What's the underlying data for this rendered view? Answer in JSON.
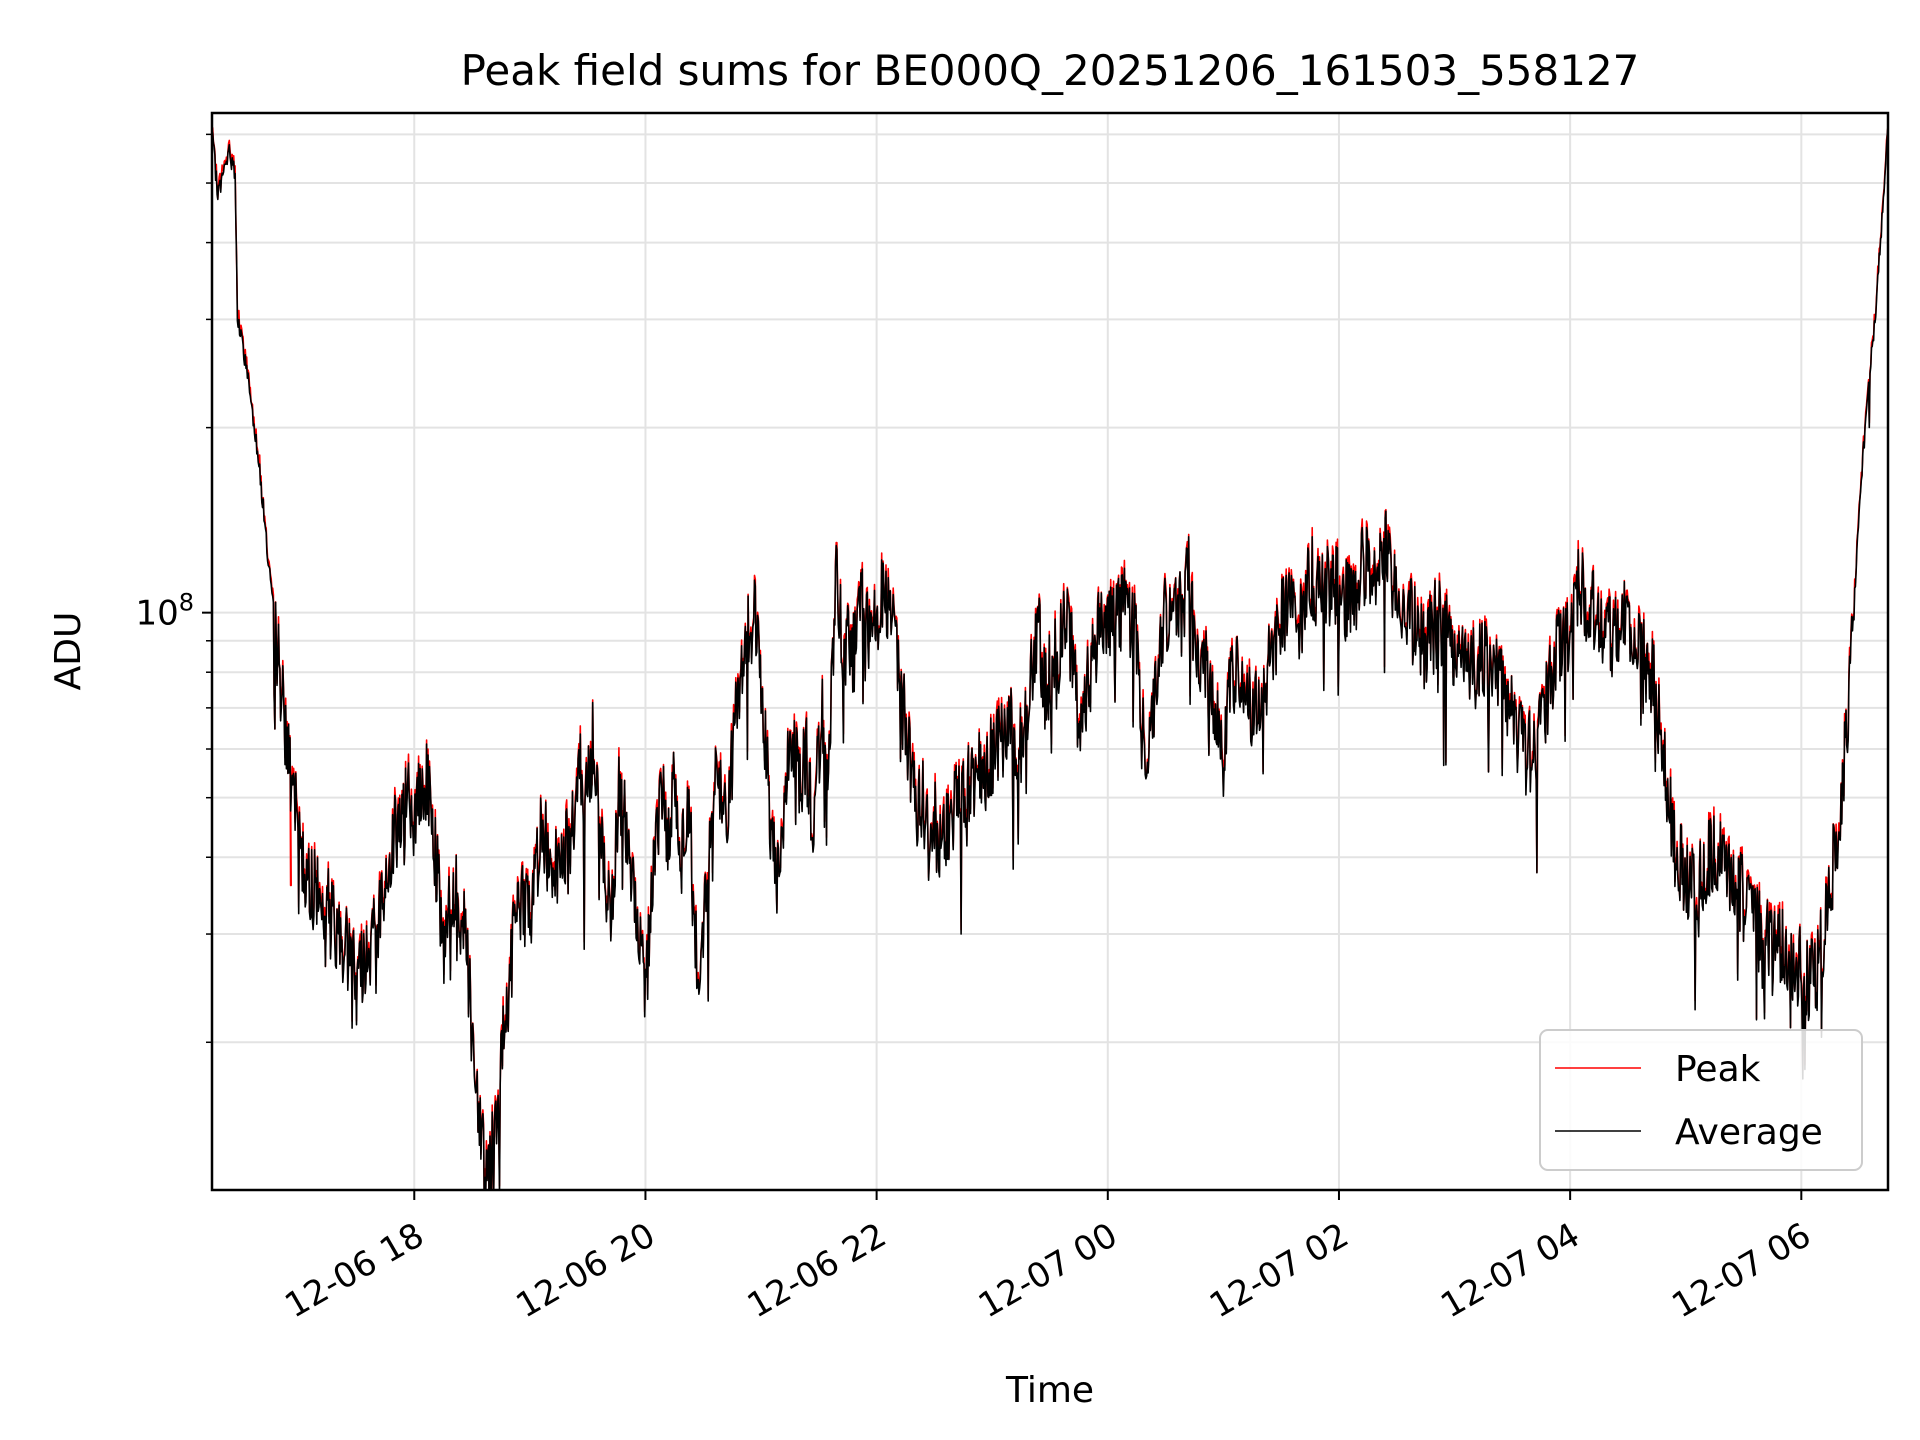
{
  "chart_data": {
    "type": "line",
    "title": "Peak field sums for BE000Q_20251206_161503_558127",
    "xlabel": "Time",
    "ylabel": "ADU",
    "yscale": "log",
    "ylim": [
      11500000,
      650000000
    ],
    "y_major_tick_labels": [
      {
        "value": 100000000,
        "base": "10",
        "exp": "8"
      }
    ],
    "y_minor_ticks": [
      20000000,
      30000000,
      40000000,
      50000000,
      60000000,
      70000000,
      80000000,
      90000000,
      200000000,
      300000000,
      400000000,
      500000000,
      600000000
    ],
    "x_unit": "hours since 12-06 16:15",
    "xlim": [
      0,
      14.5
    ],
    "x_ticks": [
      {
        "value": 1.75,
        "label": "12-06 18"
      },
      {
        "value": 3.75,
        "label": "12-06 20"
      },
      {
        "value": 5.75,
        "label": "12-06 22"
      },
      {
        "value": 7.75,
        "label": "12-07 00"
      },
      {
        "value": 9.75,
        "label": "12-07 02"
      },
      {
        "value": 11.75,
        "label": "12-07 04"
      },
      {
        "value": 13.75,
        "label": "12-07 06"
      }
    ],
    "grid": true,
    "legend_position": "lower-right",
    "series": [
      {
        "name": "Peak",
        "color": "#ff0000"
      },
      {
        "name": "Average",
        "color": "#000000"
      }
    ],
    "average_keypoints": [
      [
        0.0,
        600000000
      ],
      [
        0.05,
        480000000
      ],
      [
        0.15,
        560000000
      ],
      [
        0.2,
        520000000
      ],
      [
        0.22,
        300000000
      ],
      [
        0.3,
        250000000
      ],
      [
        0.4,
        180000000
      ],
      [
        0.5,
        115000000
      ],
      [
        0.6,
        75000000
      ],
      [
        0.7,
        50000000
      ],
      [
        0.8,
        38000000
      ],
      [
        0.9,
        35000000
      ],
      [
        1.0,
        33000000
      ],
      [
        1.1,
        30000000
      ],
      [
        1.2,
        28000000
      ],
      [
        1.3,
        27000000
      ],
      [
        1.4,
        30000000
      ],
      [
        1.45,
        32000000
      ],
      [
        1.55,
        42000000
      ],
      [
        1.65,
        48000000
      ],
      [
        1.7,
        49000000
      ],
      [
        1.75,
        45000000
      ],
      [
        1.85,
        55000000
      ],
      [
        1.92,
        44000000
      ],
      [
        2.0,
        28000000
      ],
      [
        2.1,
        36000000
      ],
      [
        2.2,
        30000000
      ],
      [
        2.25,
        20000000
      ],
      [
        2.32,
        15000000
      ],
      [
        2.38,
        12000000
      ],
      [
        2.45,
        14000000
      ],
      [
        2.55,
        23000000
      ],
      [
        2.65,
        35000000
      ],
      [
        2.75,
        32000000
      ],
      [
        2.85,
        45000000
      ],
      [
        2.95,
        38000000
      ],
      [
        3.05,
        42000000
      ],
      [
        3.1,
        40000000
      ],
      [
        3.18,
        60000000
      ],
      [
        3.22,
        48000000
      ],
      [
        3.3,
        62000000
      ],
      [
        3.38,
        40000000
      ],
      [
        3.45,
        30000000
      ],
      [
        3.52,
        50000000
      ],
      [
        3.6,
        43000000
      ],
      [
        3.7,
        28000000
      ],
      [
        3.75,
        24000000
      ],
      [
        3.82,
        40000000
      ],
      [
        3.9,
        53000000
      ],
      [
        3.95,
        42000000
      ],
      [
        4.0,
        58000000
      ],
      [
        4.05,
        38000000
      ],
      [
        4.12,
        50000000
      ],
      [
        4.2,
        25000000
      ],
      [
        4.28,
        34000000
      ],
      [
        4.35,
        55000000
      ],
      [
        4.45,
        46000000
      ],
      [
        4.5,
        56000000
      ],
      [
        4.55,
        76000000
      ],
      [
        4.62,
        90000000
      ],
      [
        4.68,
        104000000
      ],
      [
        4.72,
        88000000
      ],
      [
        4.8,
        60000000
      ],
      [
        4.85,
        40000000
      ],
      [
        4.9,
        36000000
      ],
      [
        4.95,
        50000000
      ],
      [
        5.02,
        65000000
      ],
      [
        5.08,
        52000000
      ],
      [
        5.15,
        60000000
      ],
      [
        5.2,
        43000000
      ],
      [
        5.28,
        70000000
      ],
      [
        5.34,
        58000000
      ],
      [
        5.4,
        112000000
      ],
      [
        5.45,
        90000000
      ],
      [
        5.55,
        85000000
      ],
      [
        5.62,
        102000000
      ],
      [
        5.7,
        90000000
      ],
      [
        5.8,
        105000000
      ],
      [
        5.85,
        98000000
      ],
      [
        5.9,
        110000000
      ],
      [
        5.95,
        75000000
      ],
      [
        6.0,
        66000000
      ],
      [
        6.05,
        55000000
      ],
      [
        6.1,
        48000000
      ],
      [
        6.15,
        50000000
      ],
      [
        6.2,
        42000000
      ],
      [
        6.25,
        46000000
      ],
      [
        6.3,
        40000000
      ],
      [
        6.4,
        48000000
      ],
      [
        6.5,
        50000000
      ],
      [
        6.6,
        54000000
      ],
      [
        6.7,
        56000000
      ],
      [
        6.8,
        60000000
      ],
      [
        6.9,
        66000000
      ],
      [
        7.0,
        60000000
      ],
      [
        7.1,
        80000000
      ],
      [
        7.15,
        93000000
      ],
      [
        7.2,
        75000000
      ],
      [
        7.3,
        85000000
      ],
      [
        7.4,
        98000000
      ],
      [
        7.45,
        82000000
      ],
      [
        7.5,
        67000000
      ],
      [
        7.6,
        80000000
      ],
      [
        7.7,
        100000000
      ],
      [
        7.8,
        95000000
      ],
      [
        7.9,
        108000000
      ],
      [
        8.0,
        88000000
      ],
      [
        8.08,
        60000000
      ],
      [
        8.15,
        70000000
      ],
      [
        8.2,
        92000000
      ],
      [
        8.3,
        105000000
      ],
      [
        8.4,
        98000000
      ],
      [
        8.45,
        118000000
      ],
      [
        8.5,
        90000000
      ],
      [
        8.6,
        80000000
      ],
      [
        8.7,
        70000000
      ],
      [
        8.75,
        58000000
      ],
      [
        8.8,
        75000000
      ],
      [
        8.9,
        80000000
      ],
      [
        9.0,
        68000000
      ],
      [
        9.1,
        77000000
      ],
      [
        9.2,
        90000000
      ],
      [
        9.3,
        102000000
      ],
      [
        9.4,
        95000000
      ],
      [
        9.5,
        115000000
      ],
      [
        9.6,
        107000000
      ],
      [
        9.7,
        112000000
      ],
      [
        9.8,
        104000000
      ],
      [
        9.9,
        110000000
      ],
      [
        9.97,
        120000000
      ],
      [
        10.05,
        115000000
      ],
      [
        10.15,
        127000000
      ],
      [
        10.2,
        111000000
      ],
      [
        10.25,
        108000000
      ],
      [
        10.3,
        104000000
      ],
      [
        10.4,
        95000000
      ],
      [
        10.5,
        86000000
      ],
      [
        10.6,
        100000000
      ],
      [
        10.7,
        92000000
      ],
      [
        10.8,
        84000000
      ],
      [
        10.9,
        80000000
      ],
      [
        11.0,
        86000000
      ],
      [
        11.1,
        80000000
      ],
      [
        11.2,
        70000000
      ],
      [
        11.3,
        64000000
      ],
      [
        11.38,
        58000000
      ],
      [
        11.45,
        62000000
      ],
      [
        11.55,
        72000000
      ],
      [
        11.65,
        88000000
      ],
      [
        11.75,
        95000000
      ],
      [
        11.82,
        113000000
      ],
      [
        11.9,
        104000000
      ],
      [
        12.0,
        100000000
      ],
      [
        12.1,
        94000000
      ],
      [
        12.2,
        100000000
      ],
      [
        12.3,
        90000000
      ],
      [
        12.4,
        82000000
      ],
      [
        12.48,
        76000000
      ],
      [
        12.55,
        62000000
      ],
      [
        12.6,
        48000000
      ],
      [
        12.7,
        39000000
      ],
      [
        12.8,
        36000000
      ],
      [
        12.9,
        38000000
      ],
      [
        13.0,
        41000000
      ],
      [
        13.1,
        38000000
      ],
      [
        13.2,
        36000000
      ],
      [
        13.3,
        32000000
      ],
      [
        13.4,
        30000000
      ],
      [
        13.5,
        29000000
      ],
      [
        13.6,
        28000000
      ],
      [
        13.7,
        27000000
      ],
      [
        13.8,
        25000000
      ],
      [
        13.88,
        26000000
      ],
      [
        13.95,
        30000000
      ],
      [
        14.02,
        38000000
      ],
      [
        14.1,
        52000000
      ],
      [
        14.18,
        80000000
      ],
      [
        14.25,
        150000000
      ],
      [
        14.32,
        220000000
      ],
      [
        14.4,
        320000000
      ],
      [
        14.46,
        470000000
      ],
      [
        14.5,
        620000000
      ]
    ],
    "peak_spike": {
      "x": 0.68,
      "base": 36000000,
      "top": 48500000
    }
  }
}
